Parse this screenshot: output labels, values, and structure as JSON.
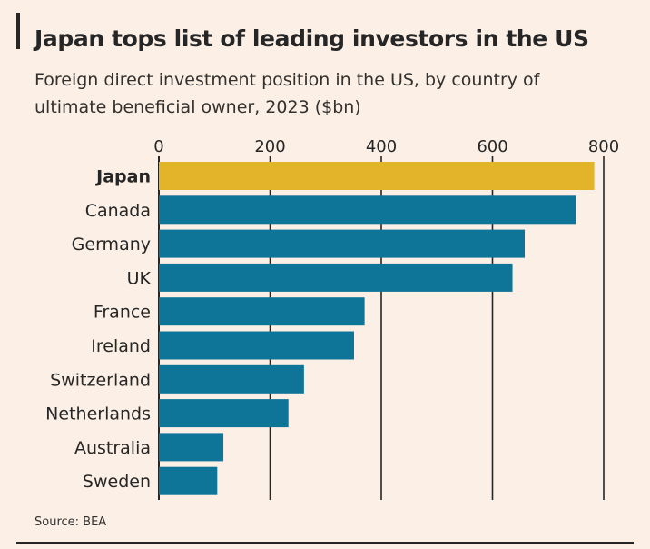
{
  "header": {
    "title": "Japan tops list of leading investors in the US",
    "subtitle": "Foreign direct investment position in the US, by country of ultimate beneficial owner, 2023 ($bn)"
  },
  "footer": {
    "source": "Source: BEA"
  },
  "colors": {
    "background": "#fcf0e6",
    "highlight": "#e3b42a",
    "bar": "#0e7498",
    "grid": "#262626"
  },
  "chart_data": {
    "type": "bar",
    "orientation": "horizontal",
    "title": "Japan tops list of leading investors in the US",
    "subtitle": "Foreign direct investment position in the US, by country of ultimate beneficial owner, 2023 ($bn)",
    "categories": [
      "Japan",
      "Canada",
      "Germany",
      "UK",
      "France",
      "Ireland",
      "Switzerland",
      "Netherlands",
      "Australia",
      "Sweden"
    ],
    "values": [
      783,
      750,
      658,
      636,
      370,
      351,
      261,
      233,
      116,
      105
    ],
    "highlight": "Japan",
    "xlim": [
      0,
      800
    ],
    "xticks": [
      0,
      200,
      400,
      600,
      800
    ],
    "axis_position": "top",
    "grid": true
  }
}
